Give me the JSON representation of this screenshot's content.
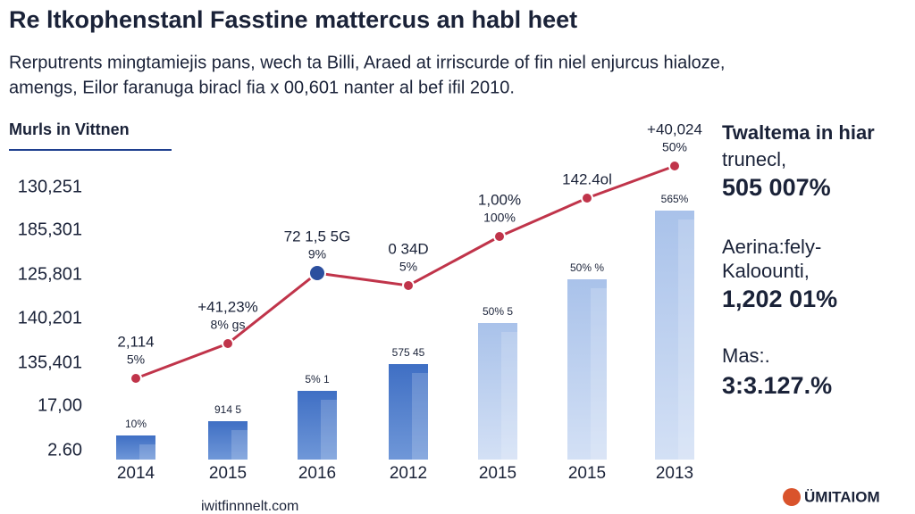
{
  "header": {
    "title": "Re ltkophenstanl Fasstine mattercus an habl heet",
    "subtitle": [
      "Rerputrents mingtamiejis pans, wech ta Billi, Araed at irriscurde of fin niel enjurcus hialoze,",
      "amengs, Eilor faranuga biracl fia x 00,601 nanter al bef ifil 2010."
    ]
  },
  "chart": {
    "heading": "Murls in Vittnen",
    "y_labels": [
      "130,251",
      "185,301",
      "125,801",
      "140,201",
      "135,401",
      "17,00",
      "2.60"
    ],
    "categories": [
      "2014",
      "2015",
      "2016",
      "2012",
      "2015",
      "2015",
      "2013"
    ],
    "bar_labels": [
      "10%",
      "914 5",
      "5% 1",
      "575 45",
      "50% 5",
      "50% %",
      "565%"
    ],
    "point_labels": [
      [
        "2,114",
        "5%"
      ],
      [
        "+41,23%",
        "8% gs"
      ],
      [
        "72 1,5 5G",
        "9%"
      ],
      [
        "0 34D",
        "5%"
      ],
      [
        "1,00%",
        "100%"
      ],
      [
        "142.4ol"
      ],
      [
        "+40,024",
        "50%"
      ]
    ]
  },
  "side": [
    {
      "label": [
        "Twaltema in hiar",
        "trunecl,"
      ],
      "value": "505 007%"
    },
    {
      "label": [
        "Aerina:fely-",
        "Kaloounti,"
      ],
      "value": "1,202 01%"
    },
    {
      "label": [
        "Mas:."
      ],
      "value": "3:3.127.%"
    }
  ],
  "footer": {
    "url": "iwitfinnnelt.com",
    "brand": "ÜMITAIOM"
  }
}
